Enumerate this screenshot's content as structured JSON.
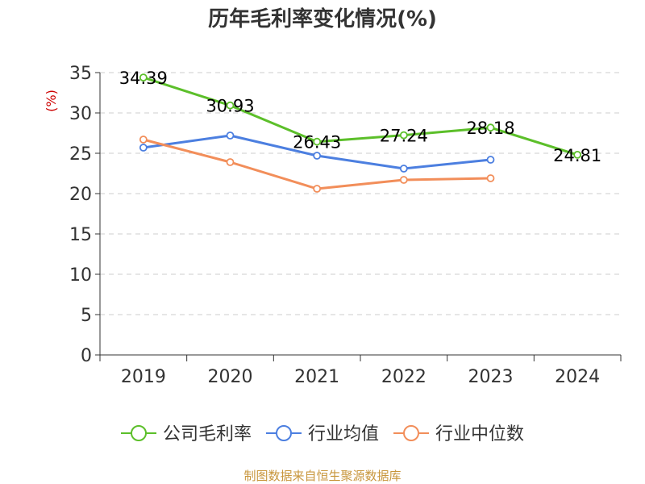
{
  "chart_data": {
    "type": "line",
    "title": "历年毛利率变化情况(%)",
    "ylabel": "(%)",
    "categories": [
      "2019",
      "2020",
      "2021",
      "2022",
      "2023",
      "2024"
    ],
    "ylim": [
      0,
      35
    ],
    "yticks": [
      0,
      5,
      10,
      15,
      20,
      25,
      30,
      35
    ],
    "grid": true,
    "legend_position": "bottom",
    "series": [
      {
        "name": "公司毛利率",
        "color": "#5cbf2a",
        "labeled": true,
        "values": [
          34.39,
          30.93,
          26.43,
          27.24,
          28.18,
          24.81
        ],
        "labels": [
          "34.39",
          "30.93",
          "26.43",
          "27.24",
          "28.18",
          "24.81"
        ]
      },
      {
        "name": "行业均值",
        "color": "#4c7fe0",
        "labeled": false,
        "values": [
          25.7,
          27.2,
          24.7,
          23.1,
          24.2,
          null
        ]
      },
      {
        "name": "行业中位数",
        "color": "#f28e5a",
        "labeled": false,
        "values": [
          26.7,
          23.9,
          20.6,
          21.7,
          21.9,
          null
        ]
      }
    ]
  },
  "source": "制图数据来自恒生聚源数据库"
}
